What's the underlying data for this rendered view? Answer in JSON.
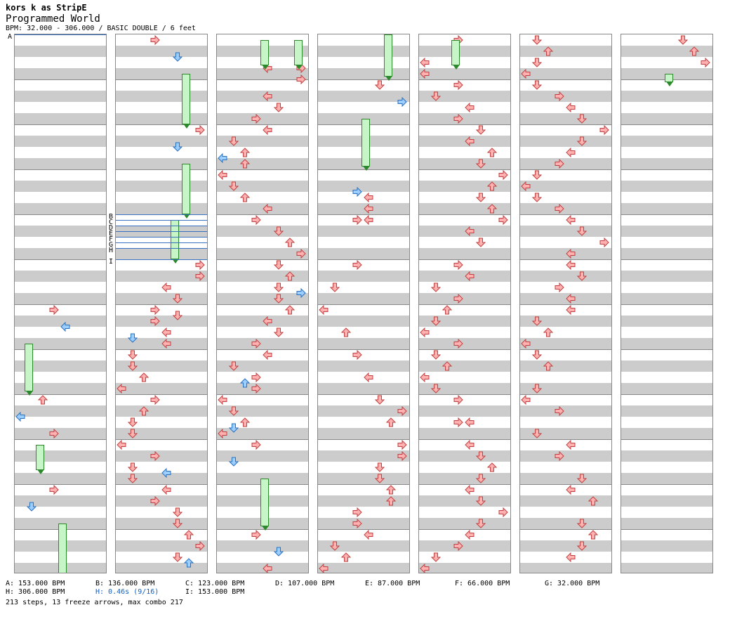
{
  "header": {
    "artist_line": "kors k as StripE",
    "title": "Programmed World",
    "info": "BPM: 32.000 - 306.000 / BASIC DOUBLE / 6 feet"
  },
  "bpm_markers": [
    "A",
    "B",
    "C",
    "D",
    "E",
    "F",
    "G",
    "H",
    "I"
  ],
  "footer": {
    "row1": [
      "A: 153.000 BPM",
      "B: 136.000 BPM",
      "C: 123.000 BPM",
      "D: 107.000 BPM",
      "E: 87.000 BPM",
      "F: 66.000 BPM",
      "G: 32.000 BPM"
    ],
    "row2": [
      "H: 306.000 BPM",
      "H: 0.46s (9/16)",
      "I: 153.000 BPM"
    ],
    "summary": "213 steps, 13 freeze arrows, max combo 217"
  },
  "colors": {
    "red_note": "#ffb0b0",
    "blue_note": "#9ccfff",
    "freeze": "#c8f5c8",
    "band": "#cccccc",
    "bpm_line": "#3a70c0"
  },
  "icons": [
    "left-arrow-icon",
    "down-arrow-icon",
    "up-arrow-icon",
    "right-arrow-icon",
    "freeze-arrow-icon"
  ]
}
